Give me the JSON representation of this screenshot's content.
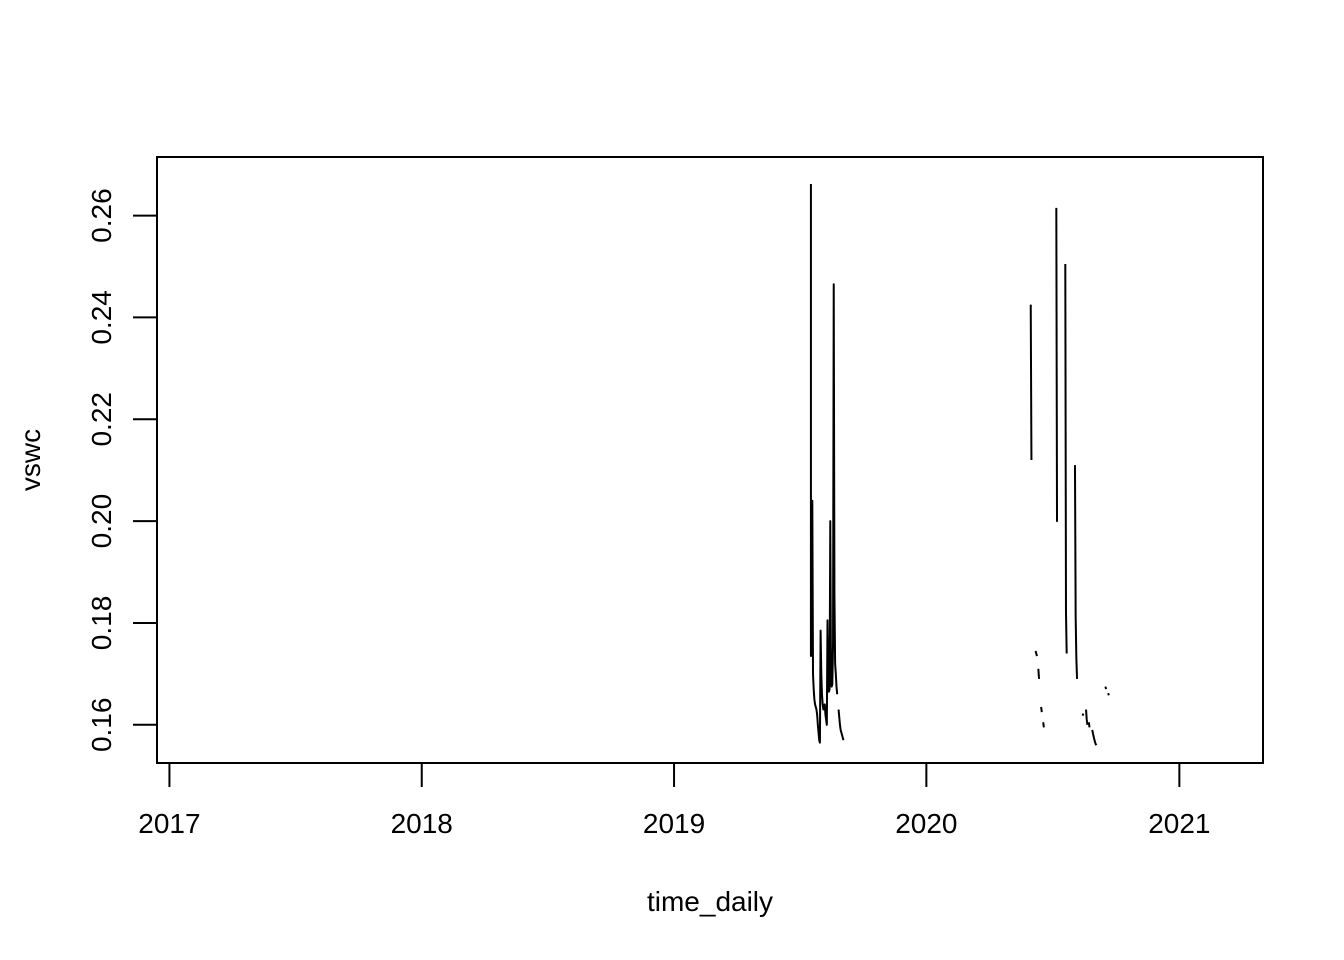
{
  "chart_data": {
    "type": "line",
    "title": "",
    "xlabel": "time_daily",
    "ylabel": "vswc",
    "xlim": [
      "2016-12-14",
      "2021-05-02"
    ],
    "ylim": [
      0.1525,
      0.2715
    ],
    "x_ticks": [
      {
        "value": "2017-01-01",
        "label": "2017"
      },
      {
        "value": "2018-01-01",
        "label": "2018"
      },
      {
        "value": "2019-01-01",
        "label": "2019"
      },
      {
        "value": "2020-01-01",
        "label": "2020"
      },
      {
        "value": "2021-01-01",
        "label": "2021"
      }
    ],
    "y_ticks": [
      {
        "value": 0.16,
        "label": "0.16"
      },
      {
        "value": 0.18,
        "label": "0.18"
      },
      {
        "value": 0.2,
        "label": "0.20"
      },
      {
        "value": 0.22,
        "label": "0.22"
      },
      {
        "value": 0.24,
        "label": "0.24"
      },
      {
        "value": 0.26,
        "label": "0.26"
      }
    ],
    "grid": false,
    "series": [
      {
        "color": "#000000",
        "segments": [
          [
            [
              "2019-07-18",
              0.2662
            ],
            [
              "2019-07-18",
              0.1735
            ],
            [
              "2019-07-19",
              0.174
            ],
            [
              "2019-07-20",
              0.204
            ],
            [
              "2019-07-21",
              0.17
            ],
            [
              "2019-07-22",
              0.167
            ],
            [
              "2019-07-23",
              0.165
            ],
            [
              "2019-07-24",
              0.164
            ],
            [
              "2019-07-25",
              0.1635
            ],
            [
              "2019-07-26",
              0.163
            ],
            [
              "2019-07-27",
              0.162
            ],
            [
              "2019-07-28",
              0.16
            ],
            [
              "2019-07-29",
              0.1585
            ],
            [
              "2019-07-30",
              0.157
            ],
            [
              "2019-07-31",
              0.1565
            ],
            [
              "2019-08-01",
              0.1785
            ],
            [
              "2019-08-02",
              0.17
            ],
            [
              "2019-08-03",
              0.166
            ],
            [
              "2019-08-04",
              0.164
            ],
            [
              "2019-08-05",
              0.163
            ],
            [
              "2019-08-06",
              0.1635
            ],
            [
              "2019-08-07",
              0.164
            ],
            [
              "2019-08-08",
              0.162
            ],
            [
              "2019-08-09",
              0.161
            ],
            [
              "2019-08-10",
              0.16
            ],
            [
              "2019-08-11",
              0.1805
            ],
            [
              "2019-08-12",
              0.17
            ],
            [
              "2019-08-13",
              0.1665
            ],
            [
              "2019-08-14",
              0.167
            ],
            [
              "2019-08-15",
              0.2
            ],
            [
              "2019-08-16",
              0.17
            ],
            [
              "2019-08-17",
              0.1675
            ],
            [
              "2019-08-18",
              0.168
            ],
            [
              "2019-08-19",
              0.176
            ],
            [
              "2019-08-20",
              0.2465
            ],
            [
              "2019-08-21",
              0.1855
            ],
            [
              "2019-08-22",
              0.172
            ],
            [
              "2019-08-23",
              0.17
            ],
            [
              "2019-08-24",
              0.1675
            ],
            [
              "2019-08-25",
              0.166
            ]
          ],
          [
            [
              "2019-08-27",
              0.163
            ],
            [
              "2019-08-28",
              0.1615
            ],
            [
              "2019-08-29",
              0.16
            ],
            [
              "2019-08-30",
              0.159
            ],
            [
              "2019-08-31",
              0.1585
            ],
            [
              "2019-09-01",
              0.158
            ],
            [
              "2019-09-02",
              0.1575
            ],
            [
              "2019-09-03",
              0.157
            ]
          ],
          [
            [
              "2020-05-31",
              0.2425
            ],
            [
              "2020-06-01",
              0.212
            ]
          ],
          [
            [
              "2020-06-07",
              0.1745
            ],
            [
              "2020-06-08",
              0.174
            ],
            [
              "2020-06-09",
              0.1735
            ]
          ],
          [
            [
              "2020-06-11",
              0.171
            ],
            [
              "2020-06-12",
              0.169
            ]
          ],
          [
            [
              "2020-06-15",
              0.1635
            ],
            [
              "2020-06-16",
              0.1625
            ]
          ],
          [
            [
              "2020-06-18",
              0.1605
            ],
            [
              "2020-06-19",
              0.1595
            ]
          ],
          [
            [
              "2020-07-07",
              0.2615
            ],
            [
              "2020-07-08",
              0.2
            ],
            [
              "2020-07-09",
              0.2
            ]
          ],
          [
            [
              "2020-07-20",
              0.2505
            ],
            [
              "2020-07-21",
              0.182
            ],
            [
              "2020-07-22",
              0.174
            ]
          ],
          [
            [
              "2020-08-03",
              0.211
            ],
            [
              "2020-08-04",
              0.181
            ],
            [
              "2020-08-05",
              0.173
            ],
            [
              "2020-08-06",
              0.169
            ]
          ],
          [
            [
              "2020-08-14",
              0.1618
            ],
            [
              "2020-08-15",
              0.1622
            ]
          ],
          [
            [
              "2020-08-19",
              0.163
            ],
            [
              "2020-08-20",
              0.161
            ],
            [
              "2020-08-21",
              0.16
            ]
          ],
          [
            [
              "2020-08-23",
              0.1605
            ],
            [
              "2020-08-24",
              0.1595
            ]
          ],
          [
            [
              "2020-08-28",
              0.159
            ],
            [
              "2020-08-29",
              0.1583
            ],
            [
              "2020-08-30",
              0.1577
            ],
            [
              "2020-08-31",
              0.1571
            ],
            [
              "2020-09-01",
              0.1566
            ],
            [
              "2020-09-02",
              0.1562
            ],
            [
              "2020-09-03",
              0.156
            ]
          ],
          [
            [
              "2020-09-16",
              0.1675
            ],
            [
              "2020-09-17",
              0.167
            ]
          ],
          [
            [
              "2020-09-20",
              0.1662
            ],
            [
              "2020-09-21",
              0.1658
            ]
          ]
        ]
      }
    ]
  }
}
